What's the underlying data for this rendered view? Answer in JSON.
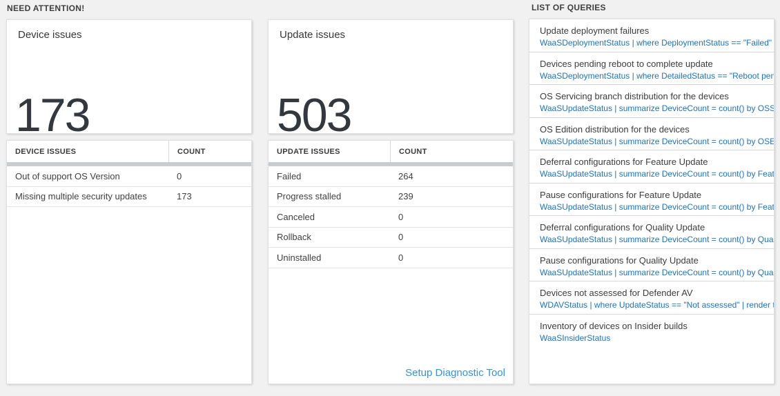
{
  "colors": {
    "page_background": "#f1f1f1",
    "card_background": "#ffffff",
    "metric_number": "#32383e",
    "query_link_blue": "#1e73be",
    "setup_link_blue": "#3095d9",
    "table_bar_gray": "#c9ccce"
  },
  "need_attention": {
    "label": "NEED ATTENTION!",
    "device_panel": {
      "title": "Device issues",
      "count": "173",
      "table": {
        "headers": {
          "name": "DEVICE ISSUES",
          "count": "COUNT"
        },
        "rows": [
          {
            "name": "Out of support OS Version",
            "count": "0"
          },
          {
            "name": "Missing multiple security updates",
            "count": "173"
          }
        ]
      }
    },
    "update_panel": {
      "title": "Update issues",
      "count": "503",
      "table": {
        "headers": {
          "name": "UPDATE ISSUES",
          "count": "COUNT"
        },
        "rows": [
          {
            "name": "Failed",
            "count": "264"
          },
          {
            "name": "Progress stalled",
            "count": "239"
          },
          {
            "name": "Canceled",
            "count": "0"
          },
          {
            "name": "Rollback",
            "count": "0"
          },
          {
            "name": "Uninstalled",
            "count": "0"
          }
        ]
      },
      "link": "Setup Diagnostic Tool"
    }
  },
  "queries_panel": {
    "label": "LIST OF QUERIES",
    "items": [
      {
        "title": "Update deployment failures",
        "query": "WaaSDeploymentStatus | where DeploymentStatus == \"Failed\" |..."
      },
      {
        "title": "Devices pending reboot to complete update",
        "query": "WaaSDeploymentStatus | where DetailedStatus == \"Reboot pend..."
      },
      {
        "title": "OS Servicing branch distribution for the devices",
        "query": "WaaSUpdateStatus | summarize DeviceCount = count() by OSSer..."
      },
      {
        "title": "OS Edition distribution for the devices",
        "query": "WaaSUpdateStatus | summarize DeviceCount = count() by OSEdit..."
      },
      {
        "title": "Deferral configurations for Feature Update",
        "query": "WaaSUpdateStatus | summarize DeviceCount = count() by Featur..."
      },
      {
        "title": "Pause configurations for Feature Update",
        "query": "WaaSUpdateStatus | summarize DeviceCount = count() by Featur..."
      },
      {
        "title": "Deferral configurations for Quality Update",
        "query": "WaaSUpdateStatus | summarize DeviceCount = count() by Qualit..."
      },
      {
        "title": "Pause configurations for Quality Update",
        "query": "WaaSUpdateStatus | summarize DeviceCount = count() by Qualit..."
      },
      {
        "title": "Devices not assessed for Defender AV",
        "query": "WDAVStatus | where UpdateStatus == \"Not assessed\" | render ta..."
      },
      {
        "title": "Inventory of devices on Insider builds",
        "query": "WaaSInsiderStatus"
      }
    ]
  }
}
